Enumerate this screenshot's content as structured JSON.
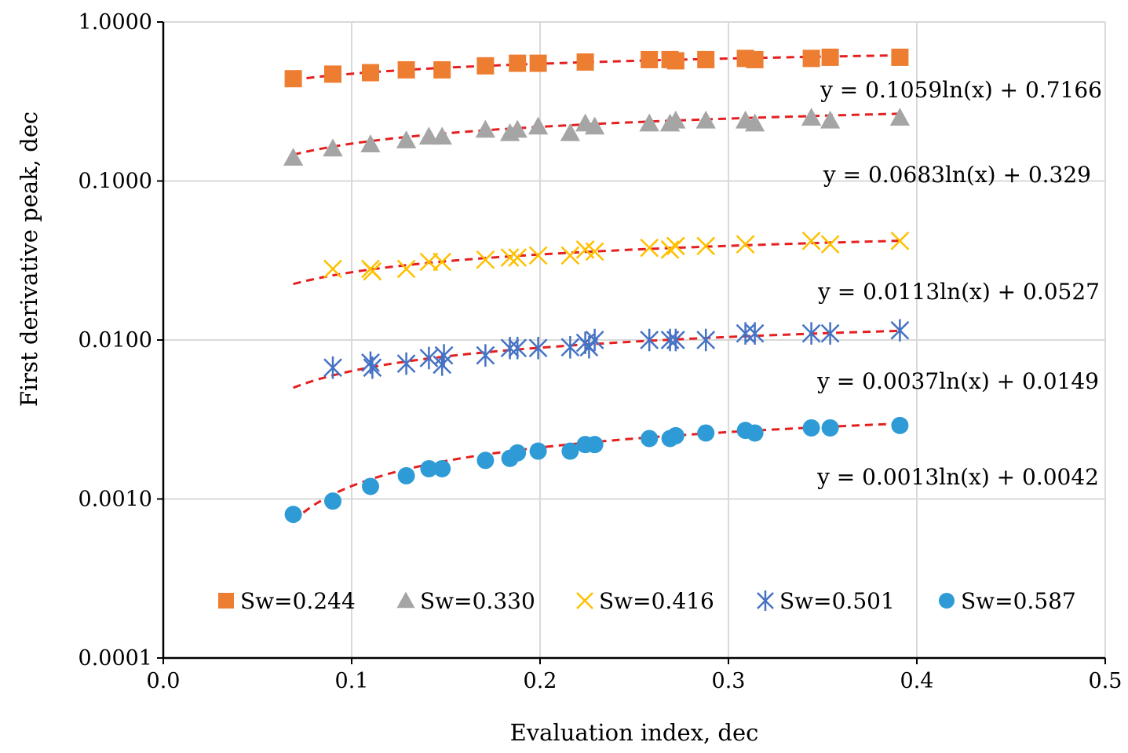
{
  "chart_data": {
    "type": "scatter",
    "title": "",
    "xlabel": "Evaluation index, dec",
    "ylabel": "First derivative peak, dec",
    "xlim": [
      0,
      0.5
    ],
    "ylim": [
      0.0001,
      1
    ],
    "yscale": "log",
    "grid": true,
    "legend_position": "bottom-inside",
    "x_ticks": [
      0,
      0.1,
      0.2,
      0.3,
      0.4,
      0.5
    ],
    "x_tick_labels": [
      "0.0",
      "0.1",
      "0.2",
      "0.3",
      "0.4",
      "0.5"
    ],
    "y_ticks": [
      0.0001,
      0.001,
      0.01,
      0.1,
      1
    ],
    "y_tick_labels": [
      "0.0001",
      "0.0010",
      "0.0100",
      "0.1000",
      "1.0000"
    ],
    "series": [
      {
        "name": "Sw=0.244",
        "marker": "square",
        "color": "#ED7D31",
        "x": [
          0.069,
          0.09,
          0.11,
          0.129,
          0.148,
          0.171,
          0.188,
          0.199,
          0.224,
          0.258,
          0.269,
          0.272,
          0.288,
          0.309,
          0.314,
          0.344,
          0.354,
          0.391
        ],
        "y": [
          0.44,
          0.47,
          0.48,
          0.5,
          0.5,
          0.53,
          0.55,
          0.55,
          0.56,
          0.58,
          0.58,
          0.57,
          0.58,
          0.59,
          0.58,
          0.59,
          0.6,
          0.6
        ],
        "trendline": {
          "type": "log",
          "a": 0.1059,
          "b": 0.7166,
          "equation": "y = 0.1059ln(x) + 0.7166"
        }
      },
      {
        "name": "Sw=0.330",
        "marker": "triangle",
        "color": "#A5A5A5",
        "x": [
          0.069,
          0.09,
          0.11,
          0.129,
          0.141,
          0.148,
          0.171,
          0.184,
          0.188,
          0.199,
          0.216,
          0.224,
          0.229,
          0.258,
          0.269,
          0.272,
          0.288,
          0.309,
          0.314,
          0.344,
          0.354,
          0.391
        ],
        "y": [
          0.14,
          0.16,
          0.17,
          0.18,
          0.19,
          0.19,
          0.21,
          0.2,
          0.21,
          0.22,
          0.2,
          0.23,
          0.22,
          0.23,
          0.23,
          0.24,
          0.24,
          0.24,
          0.23,
          0.25,
          0.24,
          0.25
        ],
        "trendline": {
          "type": "log",
          "a": 0.0683,
          "b": 0.329,
          "equation": "y = 0.0683ln(x) + 0.329"
        }
      },
      {
        "name": "Sw=0.416",
        "marker": "x",
        "color": "#FFC000",
        "x": [
          0.09,
          0.11,
          0.111,
          0.129,
          0.141,
          0.148,
          0.171,
          0.184,
          0.188,
          0.199,
          0.216,
          0.224,
          0.229,
          0.258,
          0.269,
          0.272,
          0.288,
          0.309,
          0.344,
          0.354,
          0.391
        ],
        "y": [
          0.028,
          0.028,
          0.027,
          0.028,
          0.031,
          0.031,
          0.032,
          0.033,
          0.033,
          0.034,
          0.034,
          0.037,
          0.036,
          0.038,
          0.037,
          0.039,
          0.039,
          0.04,
          0.042,
          0.04,
          0.042
        ],
        "trendline": {
          "type": "log",
          "a": 0.0113,
          "b": 0.0527,
          "equation": "y = 0.0113ln(x) + 0.0527"
        }
      },
      {
        "name": "Sw=0.501",
        "marker": "asterisk",
        "color": "#4472C4",
        "x": [
          0.09,
          0.11,
          0.111,
          0.129,
          0.141,
          0.148,
          0.149,
          0.171,
          0.184,
          0.188,
          0.199,
          0.216,
          0.224,
          0.226,
          0.229,
          0.258,
          0.269,
          0.272,
          0.288,
          0.309,
          0.314,
          0.344,
          0.354,
          0.391
        ],
        "y": [
          0.0067,
          0.0072,
          0.0067,
          0.0071,
          0.0077,
          0.007,
          0.008,
          0.008,
          0.0089,
          0.0089,
          0.0089,
          0.009,
          0.0096,
          0.009,
          0.01,
          0.01,
          0.01,
          0.01,
          0.01,
          0.011,
          0.011,
          0.011,
          0.011,
          0.0115
        ],
        "trendline": {
          "type": "log",
          "a": 0.0037,
          "b": 0.0149,
          "equation": "y = 0.0037ln(x) + 0.0149"
        }
      },
      {
        "name": "Sw=0.587",
        "marker": "circle",
        "color": "#2E9BD6",
        "x": [
          0.069,
          0.09,
          0.11,
          0.129,
          0.141,
          0.148,
          0.171,
          0.184,
          0.188,
          0.199,
          0.216,
          0.224,
          0.229,
          0.258,
          0.269,
          0.272,
          0.288,
          0.309,
          0.314,
          0.344,
          0.354,
          0.391
        ],
        "y": [
          0.0008,
          0.00097,
          0.0012,
          0.0014,
          0.00155,
          0.00155,
          0.00175,
          0.0018,
          0.00195,
          0.002,
          0.002,
          0.0022,
          0.0022,
          0.0024,
          0.0024,
          0.0025,
          0.0026,
          0.0027,
          0.0026,
          0.0028,
          0.0028,
          0.0029
        ],
        "trendline": {
          "type": "log",
          "a": 0.0013,
          "b": 0.0042,
          "equation": "y = 0.0013ln(x) + 0.0042"
        }
      }
    ],
    "trendline_color": "#E51F1F",
    "trendline_x_range": [
      0.069,
      0.391
    ]
  }
}
